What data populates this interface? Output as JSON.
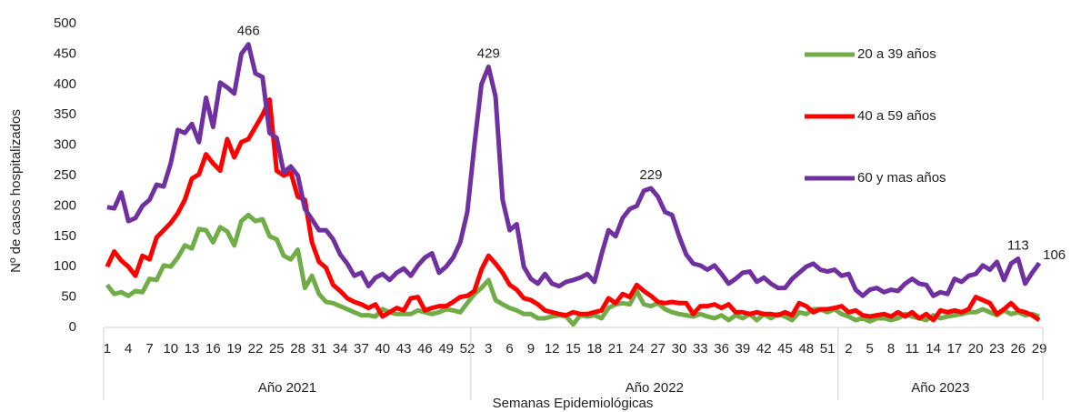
{
  "chart_data": {
    "type": "line",
    "y_label": "Nº de casos hospitalizados",
    "x_label": "Semanas Epidemiológicas",
    "ylim": [
      0,
      500
    ],
    "yticks": [
      0,
      50,
      100,
      150,
      200,
      250,
      300,
      350,
      400,
      450,
      500
    ],
    "legend": "right",
    "groups": [
      {
        "label": "Año 2021",
        "categories": [
          "1",
          null,
          null,
          "4",
          null,
          null,
          "7",
          null,
          null,
          "10",
          null,
          null,
          "13",
          null,
          null,
          "16",
          null,
          null,
          "19",
          null,
          null,
          "22",
          null,
          null,
          "25",
          null,
          null,
          "28",
          null,
          null,
          "31",
          null,
          null,
          "34",
          null,
          null,
          "37",
          null,
          null,
          "40",
          null,
          null,
          "43",
          null,
          null,
          "46",
          null,
          null,
          "49",
          null,
          null,
          "52"
        ]
      },
      {
        "label": "Año 2022",
        "categories": [
          null,
          null,
          "3",
          null,
          null,
          "6",
          null,
          null,
          "9",
          null,
          null,
          "12",
          null,
          null,
          "15",
          null,
          null,
          "18",
          null,
          null,
          "21",
          null,
          null,
          "24",
          null,
          null,
          "27",
          null,
          null,
          "30",
          null,
          null,
          "33",
          null,
          null,
          "36",
          null,
          null,
          "39",
          null,
          null,
          "42",
          null,
          null,
          "45",
          null,
          null,
          "48",
          null,
          null,
          "51",
          null
        ]
      },
      {
        "label": "Año 2023",
        "categories": [
          null,
          "2",
          null,
          null,
          "5",
          null,
          null,
          "8",
          null,
          null,
          "11",
          null,
          null,
          "14",
          null,
          null,
          "17",
          null,
          null,
          "20",
          null,
          null,
          "23",
          null,
          null,
          "26",
          null,
          null,
          "29"
        ]
      }
    ],
    "series": [
      {
        "name": "20 a 39 años",
        "color": "#70ad47",
        "values": [
          70,
          55,
          58,
          52,
          60,
          58,
          80,
          78,
          102,
          100,
          115,
          135,
          130,
          162,
          160,
          140,
          165,
          158,
          135,
          175,
          185,
          175,
          178,
          150,
          145,
          118,
          112,
          128,
          65,
          85,
          55,
          42,
          40,
          35,
          30,
          25,
          20,
          20,
          18,
          30,
          25,
          22,
          22,
          22,
          28,
          25,
          22,
          25,
          30,
          28,
          25,
          40,
          55,
          65,
          78,
          45,
          38,
          32,
          28,
          22,
          22,
          15,
          15,
          18,
          20,
          18,
          5,
          20,
          18,
          20,
          15,
          32,
          38,
          40,
          38,
          60,
          38,
          35,
          40,
          30,
          25,
          22,
          20,
          18,
          22,
          18,
          15,
          20,
          12,
          20,
          15,
          22,
          12,
          22,
          15,
          22,
          18,
          12,
          25,
          22,
          30,
          30,
          25,
          30,
          22,
          18,
          12,
          15,
          10,
          15,
          15,
          12,
          15,
          22,
          18,
          15,
          12,
          20,
          15,
          18,
          20,
          22,
          25,
          25,
          30,
          25,
          20,
          28,
          22,
          25,
          20,
          22,
          18
        ]
      },
      {
        "name": "40 a 59 años",
        "color": "#ff0000",
        "values": [
          100,
          125,
          110,
          100,
          85,
          118,
          112,
          148,
          160,
          172,
          188,
          210,
          245,
          252,
          285,
          270,
          258,
          310,
          280,
          305,
          310,
          330,
          350,
          375,
          258,
          250,
          255,
          215,
          210,
          140,
          108,
          98,
          70,
          60,
          48,
          42,
          38,
          32,
          38,
          18,
          25,
          32,
          28,
          48,
          50,
          28,
          32,
          35,
          35,
          42,
          50,
          52,
          60,
          95,
          118,
          105,
          90,
          70,
          62,
          48,
          45,
          38,
          28,
          25,
          22,
          20,
          25,
          22,
          22,
          25,
          28,
          48,
          40,
          55,
          50,
          70,
          60,
          52,
          42,
          40,
          42,
          40,
          40,
          22,
          35,
          35,
          38,
          32,
          38,
          25,
          25,
          22,
          25,
          22,
          22,
          20,
          25,
          20,
          40,
          35,
          25,
          30,
          30,
          32,
          35,
          25,
          28,
          20,
          18,
          20,
          22,
          18,
          25,
          18,
          25,
          15,
          22,
          12,
          28,
          25,
          28,
          25,
          30,
          50,
          45,
          40,
          22,
          30,
          40,
          28,
          25,
          20,
          12
        ]
      },
      {
        "name": "60 y mas años",
        "color": "#7030a0",
        "values": [
          198,
          196,
          222,
          175,
          180,
          200,
          210,
          235,
          232,
          270,
          325,
          320,
          335,
          305,
          378,
          330,
          403,
          395,
          385,
          450,
          466,
          418,
          412,
          320,
          312,
          255,
          265,
          250,
          195,
          178,
          160,
          160,
          145,
          120,
          105,
          85,
          90,
          68,
          82,
          88,
          78,
          90,
          97,
          85,
          102,
          115,
          122,
          90,
          100,
          115,
          140,
          190,
          300,
          400,
          429,
          380,
          210,
          160,
          170,
          100,
          80,
          72,
          88,
          72,
          68,
          75,
          78,
          82,
          88,
          75,
          120,
          160,
          150,
          180,
          195,
          200,
          225,
          229,
          215,
          190,
          185,
          150,
          120,
          105,
          102,
          95,
          102,
          88,
          72,
          80,
          90,
          92,
          75,
          82,
          72,
          65,
          65,
          80,
          90,
          100,
          105,
          95,
          92,
          95,
          85,
          88,
          62,
          52,
          62,
          65,
          58,
          62,
          60,
          72,
          80,
          72,
          70,
          52,
          58,
          55,
          80,
          75,
          85,
          88,
          102,
          95,
          108,
          78,
          105,
          113,
          72,
          90,
          106
        ],
        "value_labels": [
          null,
          null,
          null,
          null,
          null,
          null,
          null,
          null,
          null,
          null,
          null,
          null,
          null,
          null,
          null,
          null,
          null,
          null,
          null,
          null,
          "466",
          null,
          null,
          null,
          null,
          null,
          null,
          null,
          null,
          null,
          null,
          null,
          null,
          null,
          null,
          null,
          null,
          null,
          null,
          null,
          null,
          null,
          null,
          null,
          null,
          null,
          null,
          null,
          null,
          null,
          null,
          null,
          null,
          null,
          "429",
          null,
          null,
          null,
          null,
          null,
          null,
          null,
          null,
          null,
          null,
          null,
          null,
          null,
          null,
          null,
          null,
          null,
          null,
          null,
          null,
          null,
          null,
          "229",
          null,
          null,
          null,
          null,
          null,
          null,
          null,
          null,
          null,
          null,
          null,
          null,
          null,
          null,
          null,
          null,
          null,
          null,
          null,
          null,
          null,
          null,
          null,
          null,
          null,
          null,
          null,
          null,
          null,
          null,
          null,
          null,
          null,
          null,
          null,
          null,
          null,
          null,
          null,
          null,
          null,
          null,
          null,
          null,
          null,
          null,
          null,
          null,
          null,
          null,
          null,
          "113",
          null,
          null,
          "106"
        ]
      }
    ]
  }
}
